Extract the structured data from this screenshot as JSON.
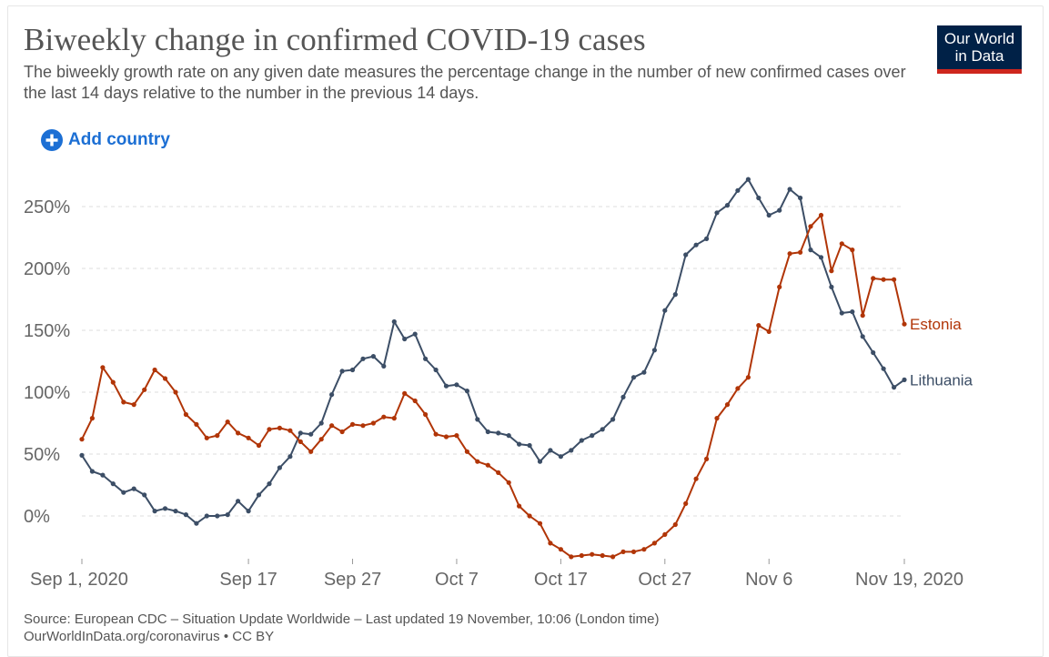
{
  "header": {
    "title": "Biweekly change in confirmed COVID-19 cases",
    "subtitle": "The biweekly growth rate on any given date measures the percentage change in the number of new confirmed cases over the last 14 days relative to the number in the previous 14 days."
  },
  "logo": {
    "line1": "Our World",
    "line2": "in Data"
  },
  "controls": {
    "add_country_label": "Add country"
  },
  "footer": {
    "source": "Source: European CDC – Situation Update Worldwide – Last updated 19 November, 10:06 (London time)",
    "license": "OurWorldInData.org/coronavirus • CC BY"
  },
  "colors": {
    "estonia": "#b13507",
    "lithuania": "#3c4e66",
    "grid": "#dddddd",
    "axis_text": "#666666",
    "title_text": "#555555",
    "link": "#1c6fd4",
    "logo_bg": "#002147",
    "logo_bar": "#ce261e"
  },
  "chart_data": {
    "type": "line",
    "title": "Biweekly change in confirmed COVID-19 cases",
    "xlabel": "",
    "ylabel": "",
    "x_start_date": "Sep 1, 2020",
    "x_end_date": "Nov 19, 2020",
    "xlim_days": [
      0,
      79
    ],
    "ylim": [
      -35,
      275
    ],
    "y_ticks": [
      0,
      50,
      100,
      150,
      200,
      250
    ],
    "y_tick_labels": [
      "0%",
      "50%",
      "100%",
      "150%",
      "200%",
      "250%"
    ],
    "x_ticks": [
      {
        "day": 0,
        "label": "Sep 1, 2020"
      },
      {
        "day": 16,
        "label": "Sep 17"
      },
      {
        "day": 26,
        "label": "Sep 27"
      },
      {
        "day": 36,
        "label": "Oct 7"
      },
      {
        "day": 46,
        "label": "Oct 17"
      },
      {
        "day": 56,
        "label": "Oct 27"
      },
      {
        "day": 66,
        "label": "Nov 6"
      },
      {
        "day": 79,
        "label": "Nov 19, 2020"
      }
    ],
    "grid": true,
    "legend": "inline labels at line ends",
    "series": [
      {
        "name": "Lithuania",
        "label": "Lithuania",
        "values": [
          49,
          36,
          33,
          26,
          19,
          22,
          17,
          4,
          6,
          4,
          1,
          -6,
          0,
          0,
          1,
          12,
          4,
          17,
          26,
          39,
          48,
          67,
          66,
          75,
          98,
          117,
          118,
          127,
          129,
          121,
          157,
          143,
          147,
          127,
          118,
          105,
          106,
          101,
          78,
          68,
          67,
          65,
          58,
          57,
          44,
          53,
          48,
          53,
          61,
          65,
          70,
          78,
          96,
          112,
          116,
          134,
          166,
          179,
          211,
          219,
          224,
          245,
          251,
          263,
          272,
          257,
          243,
          247,
          264,
          257,
          215,
          209,
          185,
          164,
          165,
          145,
          132,
          119,
          104,
          110
        ]
      },
      {
        "name": "Estonia",
        "label": "Estonia",
        "values": [
          62,
          79,
          120,
          108,
          92,
          90,
          102,
          118,
          111,
          100,
          82,
          74,
          63,
          65,
          76,
          67,
          63,
          57,
          70,
          71,
          69,
          60,
          52,
          62,
          73,
          68,
          74,
          73,
          75,
          80,
          79,
          99,
          93,
          82,
          66,
          64,
          65,
          52,
          44,
          41,
          35,
          27,
          8,
          0,
          -6,
          -22,
          -27,
          -33,
          -32,
          -31,
          -32,
          -33,
          -29,
          -29,
          -27,
          -22,
          -15,
          -7,
          10,
          30,
          46,
          79,
          90,
          103,
          112,
          154,
          149,
          185,
          212,
          213,
          234,
          243,
          198,
          220,
          215,
          162,
          192,
          191,
          191,
          155
        ]
      }
    ]
  }
}
